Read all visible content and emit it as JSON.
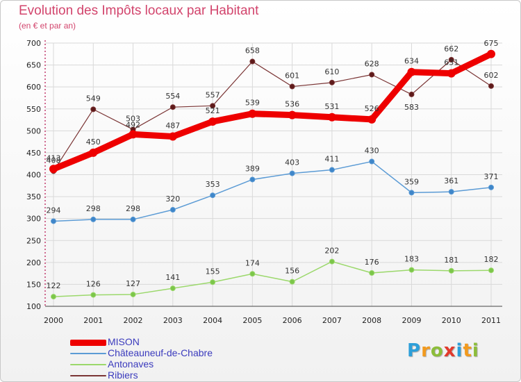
{
  "header": {
    "title": "Evolution des Impôts locaux par Habitant",
    "subtitle": "(en € et par an)"
  },
  "colors": {
    "title": "#d2446c",
    "axis": "#c23a6c",
    "grid": "#d9d9d9",
    "legend_text": "#3b3bbd"
  },
  "brand": {
    "letters": [
      {
        "char": "P",
        "color": "#2d9fd9"
      },
      {
        "char": "r",
        "color": "#f29a1e"
      },
      {
        "char": "o",
        "color": "#8cbd3a"
      },
      {
        "char": "x",
        "color": "#e23a2c"
      },
      {
        "char": "i",
        "color": "#2d9fd9"
      },
      {
        "char": "t",
        "color": "#f29a1e"
      },
      {
        "char": "i",
        "color": "#8cbd3a"
      }
    ]
  },
  "chart_data": {
    "type": "line",
    "title": "Evolution des Impôts locaux par Habitant",
    "subtitle": "(en € et par an)",
    "xlabel": "",
    "ylabel": "",
    "categories": [
      "2000",
      "2001",
      "2002",
      "2003",
      "2004",
      "2005",
      "2006",
      "2007",
      "2008",
      "2009",
      "2010",
      "2011"
    ],
    "ylim": [
      100,
      700
    ],
    "yticks": [
      100,
      150,
      200,
      250,
      300,
      350,
      400,
      450,
      500,
      550,
      600,
      650,
      700
    ],
    "grid": true,
    "legend_position": "bottom-left",
    "series": [
      {
        "name": "MISON",
        "color": "#ee0000",
        "width": 9,
        "marker": false,
        "values": [
          413,
          450,
          492,
          487,
          521,
          539,
          536,
          531,
          526,
          634,
          631,
          675
        ]
      },
      {
        "name": "Châteauneuf-de-Chabre",
        "color": "#5b9bd5",
        "marker_fill": "#3f86c9",
        "width": 1.5,
        "marker": true,
        "values": [
          294,
          298,
          298,
          320,
          353,
          389,
          403,
          411,
          430,
          359,
          361,
          371
        ]
      },
      {
        "name": "Antonaves",
        "color": "#9bd86b",
        "marker_fill": "#7cc64a",
        "width": 1.5,
        "marker": true,
        "values": [
          122,
          126,
          127,
          141,
          155,
          174,
          156,
          202,
          176,
          183,
          181,
          182
        ]
      },
      {
        "name": "Ribiers",
        "color": "#7a3434",
        "marker_fill": "#5e1a1a",
        "width": 1.2,
        "marker": true,
        "values": [
          408,
          549,
          503,
          554,
          557,
          658,
          601,
          610,
          628,
          583,
          662,
          602
        ]
      }
    ]
  }
}
